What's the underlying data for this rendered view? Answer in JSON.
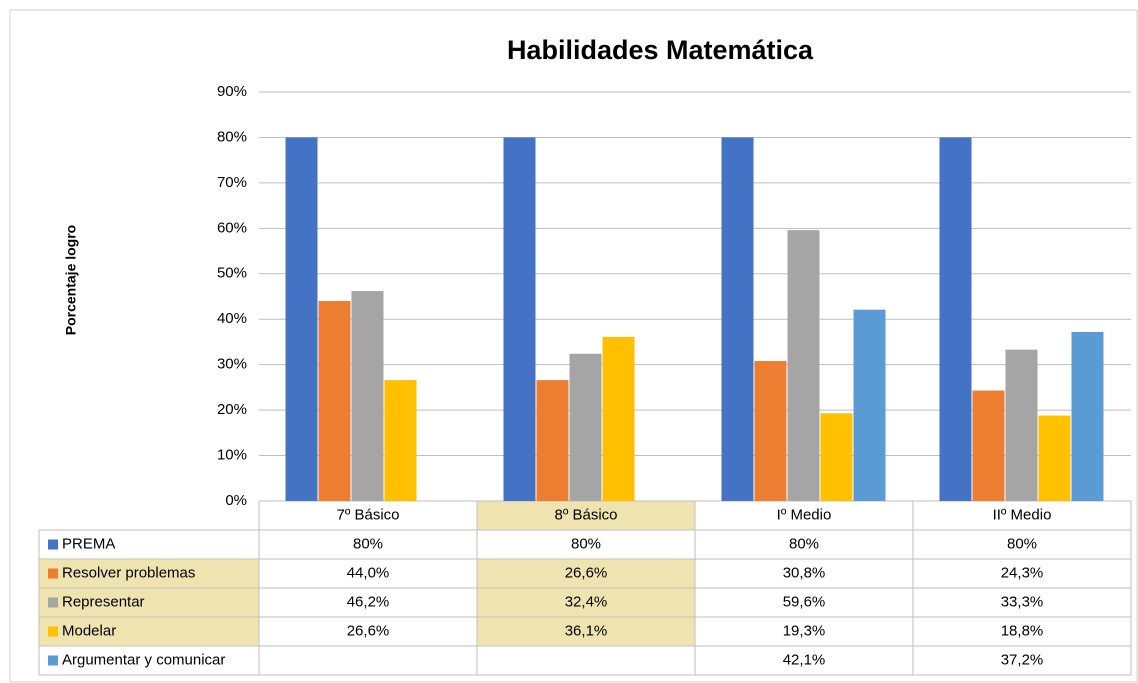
{
  "chart_data": {
    "type": "bar",
    "title": "Habilidades Matemática",
    "y_label": "Porcentaje logro",
    "categories": [
      "7º Básico",
      "8º Básico",
      "Iº Medio",
      "IIº Medio"
    ],
    "series": [
      {
        "name": "PREMA",
        "color": "#4472c4",
        "values": [
          80,
          80,
          80,
          80
        ],
        "value_labels": [
          "80%",
          "80%",
          "80%",
          "80%"
        ]
      },
      {
        "name": "Resolver problemas",
        "color": "#ed7d31",
        "values": [
          44.0,
          26.6,
          30.8,
          24.3
        ],
        "value_labels": [
          "44,0%",
          "26,6%",
          "30,8%",
          "24,3%"
        ]
      },
      {
        "name": "Representar",
        "color": "#a5a5a5",
        "values": [
          46.2,
          32.4,
          59.6,
          33.3
        ],
        "value_labels": [
          "46,2%",
          "32,4%",
          "59,6%",
          "33,3%"
        ]
      },
      {
        "name": "Modelar",
        "color": "#ffc000",
        "values": [
          26.6,
          36.1,
          19.3,
          18.8
        ],
        "value_labels": [
          "26,6%",
          "36,1%",
          "19,3%",
          "18,8%"
        ]
      },
      {
        "name": "Argumentar y comunicar",
        "color": "#5b9bd5",
        "values": [
          null,
          null,
          42.1,
          37.2
        ],
        "value_labels": [
          null,
          null,
          "42,1%",
          "37,2%"
        ]
      }
    ],
    "ylim": [
      0,
      90
    ],
    "yticks": [
      {
        "value": 0,
        "label": "0%"
      },
      {
        "value": 10,
        "label": "10%"
      },
      {
        "value": 20,
        "label": "20%"
      },
      {
        "value": 30,
        "label": "30%"
      },
      {
        "value": 40,
        "label": "40%"
      },
      {
        "value": 50,
        "label": "50%"
      },
      {
        "value": 60,
        "label": "60%"
      },
      {
        "value": 70,
        "label": "70%"
      },
      {
        "value": 80,
        "label": "80%"
      },
      {
        "value": 90,
        "label": "90%"
      }
    ],
    "grid": true
  }
}
